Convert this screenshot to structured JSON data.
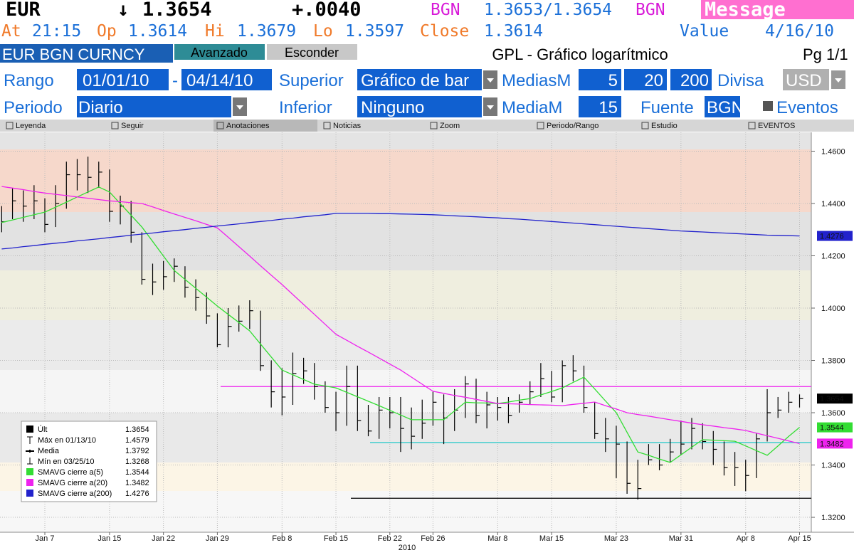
{
  "header": {
    "symbol": "EUR",
    "arrow": "↓",
    "last": 1.3654,
    "change": "+.0040",
    "currency1": "BGN",
    "bid_ask": "1.3653/1.3654",
    "currency2": "BGN",
    "message": "Message"
  },
  "quote": {
    "at_label": "At",
    "time": "21:15",
    "op_label": "Op",
    "open": 1.3614,
    "hi_label": "Hi",
    "high": 1.3679,
    "lo_label": "Lo",
    "low": 1.3597,
    "close_label": "Close",
    "close": 1.3614,
    "value_label": "Value",
    "date": "4/16/10"
  },
  "bar": {
    "security": "EUR BGN CURNCY",
    "tabs": [
      "Avanzado",
      "Esconder"
    ],
    "title": "GPL - Gráfico logarítmico",
    "page": "Pg 1/1"
  },
  "form": {
    "rango": "Rango",
    "from": "01/01/10",
    "dash": "-",
    "to": "04/14/10",
    "superior": "Superior",
    "superior_value": "Gráfico de bar",
    "medias_label": "MediasM",
    "medias": [
      5,
      20,
      200
    ],
    "divisa": "Divisa",
    "divisa_value": "USD",
    "periodo": "Periodo",
    "periodo_value": "Diario",
    "inferior": "Inferior",
    "inferior_value": "Ninguno",
    "media_label": "MediaM",
    "media": 15,
    "fuente": "Fuente",
    "fuente_value": "BGN",
    "eventos": "Eventos"
  },
  "toolbar": [
    "Leyenda",
    "Seguir",
    "Anotaciones",
    "Noticias",
    "Zoom",
    "Periodo/Rango",
    "Estudio",
    "EVENTOS"
  ],
  "chart_data": {
    "type": "hlc-bar",
    "x_label": "2010",
    "categories": [
      null,
      null,
      null,
      null,
      "Jan 7",
      null,
      null,
      null,
      null,
      null,
      "Jan 15",
      null,
      null,
      null,
      null,
      "Jan 22",
      null,
      null,
      null,
      null,
      "Jan 29",
      null,
      null,
      null,
      null,
      null,
      "Feb 8",
      null,
      null,
      null,
      null,
      "Feb 15",
      null,
      null,
      null,
      null,
      "Feb 22",
      null,
      null,
      null,
      "Feb 26",
      null,
      null,
      null,
      null,
      null,
      "Mar 8",
      null,
      null,
      null,
      null,
      "Mar 15",
      null,
      null,
      null,
      null,
      null,
      "Mar 23",
      null,
      null,
      null,
      null,
      null,
      "Mar 31",
      null,
      null,
      null,
      null,
      null,
      "Apr 8",
      null,
      null,
      null,
      null,
      "Apr 15"
    ],
    "high": [
      1.439,
      1.446,
      1.445,
      1.447,
      1.442,
      1.447,
      1.456,
      1.457,
      1.4579,
      1.456,
      1.453,
      1.443,
      1.441,
      1.429,
      1.417,
      1.418,
      1.419,
      1.416,
      1.411,
      1.406,
      1.398,
      1.4,
      1.401,
      1.403,
      1.399,
      1.38,
      1.377,
      1.383,
      1.381,
      1.379,
      1.372,
      1.368,
      1.378,
      1.378,
      1.363,
      1.366,
      1.366,
      1.366,
      1.362,
      1.365,
      1.368,
      1.367,
      1.369,
      1.374,
      1.373,
      1.368,
      1.366,
      1.366,
      1.367,
      1.372,
      1.379,
      1.376,
      1.38,
      1.382,
      1.378,
      1.364,
      1.358,
      1.355,
      1.349,
      1.342,
      1.348,
      1.348,
      1.35,
      1.357,
      1.358,
      1.356,
      1.353,
      1.349,
      1.345,
      1.342,
      1.352,
      1.369,
      1.366,
      1.368,
      1.367
    ],
    "low": [
      1.429,
      1.434,
      1.433,
      1.434,
      1.429,
      1.431,
      1.438,
      1.445,
      1.444,
      1.446,
      1.433,
      1.432,
      1.425,
      1.409,
      1.405,
      1.407,
      1.41,
      1.404,
      1.399,
      1.394,
      1.385,
      1.385,
      1.391,
      1.392,
      1.376,
      1.362,
      1.359,
      1.363,
      1.371,
      1.365,
      1.36,
      1.353,
      1.355,
      1.353,
      1.351,
      1.35,
      1.354,
      1.345,
      1.346,
      1.35,
      1.355,
      1.348,
      1.353,
      1.358,
      1.356,
      1.354,
      1.357,
      1.356,
      1.36,
      1.363,
      1.366,
      1.364,
      1.364,
      1.372,
      1.36,
      1.35,
      1.345,
      1.335,
      1.329,
      1.3268,
      1.34,
      1.338,
      1.341,
      1.344,
      1.346,
      1.346,
      1.34,
      1.336,
      1.332,
      1.33,
      1.335,
      1.349,
      1.358,
      1.36,
      1.362
    ],
    "close": [
      1.433,
      1.441,
      1.439,
      1.441,
      1.432,
      1.44,
      1.451,
      1.451,
      1.45,
      1.452,
      1.437,
      1.439,
      1.429,
      1.411,
      1.41,
      1.412,
      1.416,
      1.408,
      1.404,
      1.397,
      1.386,
      1.393,
      1.395,
      1.399,
      1.378,
      1.368,
      1.366,
      1.375,
      1.376,
      1.37,
      1.362,
      1.36,
      1.37,
      1.357,
      1.353,
      1.361,
      1.36,
      1.354,
      1.351,
      1.356,
      1.364,
      1.358,
      1.361,
      1.371,
      1.359,
      1.363,
      1.362,
      1.359,
      1.364,
      1.368,
      1.373,
      1.366,
      1.378,
      1.376,
      1.362,
      1.352,
      1.35,
      1.348,
      1.333,
      1.331,
      1.342,
      1.34,
      1.345,
      1.348,
      1.354,
      1.349,
      1.346,
      1.339,
      1.339,
      1.336,
      1.35,
      1.36,
      1.361,
      1.364,
      1.3654
    ],
    "bar_color": "#000000",
    "series": [
      {
        "name": "SMAVG cierre a(5)",
        "color": "#33dd33",
        "values": [
          1.4327,
          1.4337,
          1.4347,
          1.4357,
          1.4367,
          1.4386,
          1.4405,
          1.4425,
          1.4444,
          1.4463,
          1.4444,
          1.4399,
          1.4355,
          1.431,
          1.4255,
          1.4199,
          1.4144,
          1.411,
          1.4076,
          1.4042,
          1.4008,
          1.3976,
          1.3945,
          1.3913,
          1.3863,
          1.3813,
          1.3763,
          1.3745,
          1.3727,
          1.3709,
          1.3702,
          1.3695,
          1.3678,
          1.3661,
          1.3644,
          1.3627,
          1.3609,
          1.3591,
          1.3573,
          1.3573,
          1.3573,
          1.3573,
          1.3607,
          1.364,
          1.3638,
          1.3637,
          1.3635,
          1.3641,
          1.3648,
          1.3654,
          1.3668,
          1.3681,
          1.3695,
          1.3716,
          1.3736,
          1.3691,
          1.3645,
          1.36,
          1.3525,
          1.345,
          1.3437,
          1.3423,
          1.341,
          1.3439,
          1.3468,
          1.3497,
          1.3495,
          1.3493,
          1.3491,
          1.3473,
          1.3455,
          1.3437,
          1.3473,
          1.351,
          1.3544
        ]
      },
      {
        "name": "SMAVG cierre a(20)",
        "color": "#ee22ee",
        "values": [
          1.4465,
          1.4459,
          1.4453,
          1.4446,
          1.444,
          1.4435,
          1.443,
          1.4425,
          1.442,
          1.4415,
          1.441,
          1.4407,
          1.4403,
          1.44,
          1.4387,
          1.4373,
          1.436,
          1.4347,
          1.4334,
          1.432,
          1.4307,
          1.4271,
          1.4235,
          1.4199,
          1.4162,
          1.4126,
          1.409,
          1.4052,
          1.4014,
          1.3976,
          1.3938,
          1.39,
          1.3877,
          1.3854,
          1.3832,
          1.3809,
          1.3786,
          1.3763,
          1.3736,
          1.3709,
          1.3682,
          1.3674,
          1.3666,
          1.3659,
          1.3651,
          1.3643,
          1.3635,
          1.3634,
          1.3633,
          1.3631,
          1.363,
          1.3629,
          1.3627,
          1.3632,
          1.3636,
          1.3641,
          1.3627,
          1.3614,
          1.36,
          1.3593,
          1.3587,
          1.358,
          1.3573,
          1.3567,
          1.356,
          1.3554,
          1.3549,
          1.3543,
          1.3538,
          1.3532,
          1.3522,
          1.3512,
          1.3502,
          1.3492,
          1.3482
        ]
      },
      {
        "name": "SMAVG cierre a(200)",
        "color": "#2222cc",
        "values": [
          1.4226,
          1.423,
          1.4235,
          1.4239,
          1.4244,
          1.4248,
          1.4252,
          1.4257,
          1.4261,
          1.4265,
          1.427,
          1.4274,
          1.4279,
          1.4283,
          1.4287,
          1.4292,
          1.4296,
          1.43,
          1.4305,
          1.4309,
          1.4314,
          1.4318,
          1.4322,
          1.4327,
          1.4331,
          1.4335,
          1.434,
          1.4344,
          1.4349,
          1.4353,
          1.4357,
          1.4362,
          1.4362,
          1.4362,
          1.4362,
          1.4361,
          1.4361,
          1.436,
          1.4359,
          1.4358,
          1.4357,
          1.4355,
          1.4353,
          1.4351,
          1.4349,
          1.4347,
          1.4345,
          1.4342,
          1.434,
          1.4337,
          1.4334,
          1.4331,
          1.4328,
          1.4325,
          1.4322,
          1.4319,
          1.4316,
          1.4313,
          1.431,
          1.4307,
          1.4304,
          1.4301,
          1.4298,
          1.4295,
          1.4293,
          1.4291,
          1.4289,
          1.4287,
          1.4285,
          1.4283,
          1.4281,
          1.4279,
          1.4278,
          1.4277,
          1.4276
        ]
      }
    ],
    "ref_lines": [
      {
        "value": 1.37,
        "color": "#ee22ee"
      },
      {
        "value": 1.3486,
        "color": "#33cccc"
      },
      {
        "value": 1.3273,
        "color": "#000000"
      }
    ],
    "last_marker_color": "#000000",
    "ylim": [
      1.3143,
      1.4672
    ],
    "yticks": [
      {
        "value": 1.32,
        "label": "1.3200"
      },
      {
        "value": 1.34,
        "label": "1.3400"
      },
      {
        "value": 1.36,
        "label": "1.3600"
      },
      {
        "value": 1.38,
        "label": "1.3800"
      },
      {
        "value": 1.4,
        "label": "1.4000"
      },
      {
        "value": 1.42,
        "label": "1.4200"
      },
      {
        "value": 1.44,
        "label": "1.4400"
      },
      {
        "value": 1.46,
        "label": "1.4600"
      }
    ],
    "grid": true,
    "legend": {
      "position": "lower left",
      "stats": [
        {
          "label": "Últ",
          "value": 1.3654
        },
        {
          "label": "Máx en 01/13/10",
          "value": 1.4579
        },
        {
          "label": "Media",
          "value": 1.3792
        },
        {
          "label": "Mín en 03/25/10",
          "value": 1.3268
        }
      ]
    }
  }
}
